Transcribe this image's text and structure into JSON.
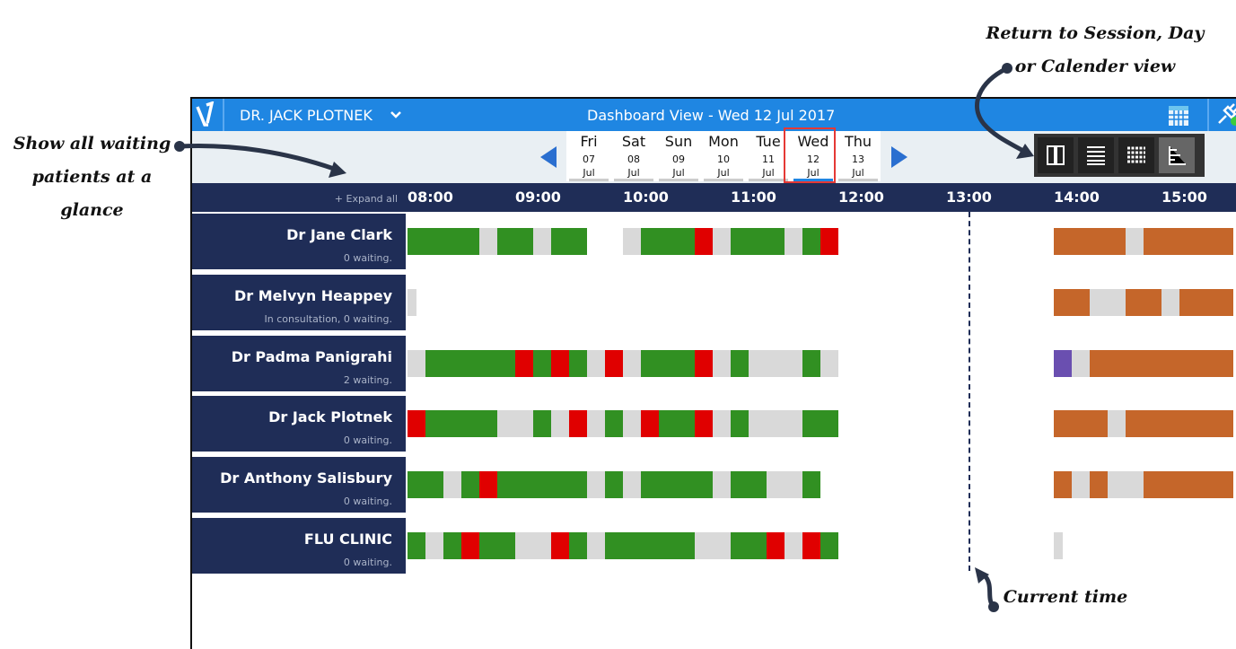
{
  "header": {
    "user": "DR. JACK PLOTNEK",
    "title": "Dashboard View - Wed 12 Jul 2017"
  },
  "dates": [
    {
      "day": "Fri",
      "date": "07",
      "month": "Jul"
    },
    {
      "day": "Sat",
      "date": "08",
      "month": "Jul"
    },
    {
      "day": "Sun",
      "date": "09",
      "month": "Jul"
    },
    {
      "day": "Mon",
      "date": "10",
      "month": "Jul"
    },
    {
      "day": "Tue",
      "date": "11",
      "month": "Jul"
    },
    {
      "day": "Wed",
      "date": "12",
      "month": "Jul"
    },
    {
      "day": "Thu",
      "date": "13",
      "month": "Jul"
    }
  ],
  "expand_all": "+ Expand all",
  "times": [
    "08:00",
    "09:00",
    "10:00",
    "11:00",
    "12:00",
    "13:00",
    "14:00",
    "15:00"
  ],
  "rows": [
    {
      "name": "Dr Jane Clark",
      "status": "0 waiting."
    },
    {
      "name": "Dr Melvyn Heappey",
      "status": "In consultation, 0 waiting."
    },
    {
      "name": "Dr Padma Panigrahi",
      "status": "2 waiting."
    },
    {
      "name": "Dr Jack Plotnek",
      "status": "0 waiting."
    },
    {
      "name": "Dr Anthony Salisbury",
      "status": "0 waiting."
    },
    {
      "name": "FLU CLINIC",
      "status": "0 waiting."
    }
  ],
  "annotations": {
    "views": [
      "Return to Session, Day",
      "or Calender view"
    ],
    "waiting": [
      "Show all waiting",
      "patients at a",
      "glance"
    ],
    "current_time": "Current time"
  }
}
